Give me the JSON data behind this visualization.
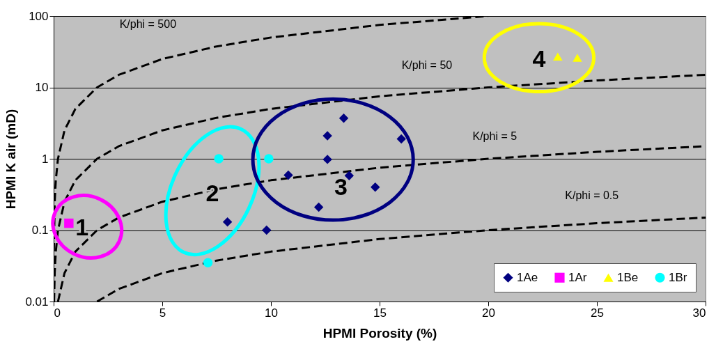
{
  "chart_data": {
    "type": "scatter",
    "xlabel": "HPMI Porosity (%)",
    "ylabel": "HPMI K air (mD)",
    "xlim": [
      0,
      30
    ],
    "xticks": [
      0,
      5,
      10,
      15,
      20,
      25,
      30
    ],
    "ylim": [
      0.01,
      100
    ],
    "yticks": [
      0.01,
      0.1,
      1,
      10,
      100
    ],
    "log": "y",
    "grid": "y",
    "legend": "bottom right",
    "series": [
      {
        "type": "line",
        "color": "#000000",
        "line_style": "dashed",
        "marker": "none",
        "x": [
          0.002,
          0.01,
          0.05,
          0.1,
          0.2,
          0.5,
          1,
          2,
          3,
          5,
          7.5,
          10,
          15,
          20
        ],
        "values": [
          0.01,
          0.05,
          0.25,
          0.5,
          1,
          2.5,
          5,
          10,
          15,
          25,
          37.5,
          50,
          75,
          100
        ]
      },
      {
        "type": "line",
        "color": "#000000",
        "line_style": "dashed",
        "marker": "none",
        "x": [
          0.02,
          0.05,
          0.1,
          0.2,
          0.5,
          1,
          2,
          3,
          5,
          7.5,
          10,
          15,
          20,
          25,
          30
        ],
        "values": [
          0.01,
          0.025,
          0.05,
          0.1,
          0.25,
          0.5,
          1,
          1.5,
          2.5,
          3.75,
          5,
          7.5,
          10,
          12.5,
          15
        ]
      },
      {
        "type": "line",
        "color": "#000000",
        "line_style": "dashed",
        "marker": "none",
        "x": [
          0.2,
          0.5,
          1,
          2,
          3,
          5,
          7.5,
          10,
          15,
          20,
          25,
          30
        ],
        "values": [
          0.01,
          0.025,
          0.05,
          0.1,
          0.15,
          0.25,
          0.375,
          0.5,
          0.75,
          1,
          1.25,
          1.5
        ]
      },
      {
        "type": "line",
        "color": "#000000",
        "line_style": "dashed",
        "marker": "none",
        "x": [
          2,
          3,
          5,
          7.5,
          10,
          15,
          20,
          25,
          30
        ],
        "values": [
          0.01,
          0.015,
          0.025,
          0.0375,
          0.05,
          0.075,
          0.1,
          0.125,
          0.15
        ]
      },
      {
        "name": "1Ae",
        "color": "#000080",
        "marker": "diamond",
        "x": [
          8.0,
          9.8,
          13.35,
          12.6,
          16.0,
          12.6,
          10.8,
          13.6,
          14.8,
          12.2
        ],
        "values": [
          0.13,
          0.1,
          3.7,
          2.1,
          1.9,
          0.98,
          0.59,
          0.58,
          0.4,
          0.21
        ]
      },
      {
        "name": "1Ar",
        "color": "#ff00ff",
        "marker": "square",
        "x": [
          0.7
        ],
        "values": [
          0.125
        ]
      },
      {
        "name": "1Be",
        "color": "#ffff00",
        "marker": "triangle",
        "x": [
          23.2,
          24.1
        ],
        "values": [
          27,
          26
        ]
      },
      {
        "name": "1Br",
        "color": "#00ffff",
        "marker": "circle",
        "x": [
          7.6,
          9.9,
          7.1
        ],
        "values": [
          1.0,
          1.0,
          0.035
        ]
      }
    ],
    "annotations": [
      "K/phi = 500",
      "K/phi = 50",
      "K/phi = 5",
      "K/phi = 0.5",
      "1",
      "2",
      "3",
      "4"
    ]
  }
}
